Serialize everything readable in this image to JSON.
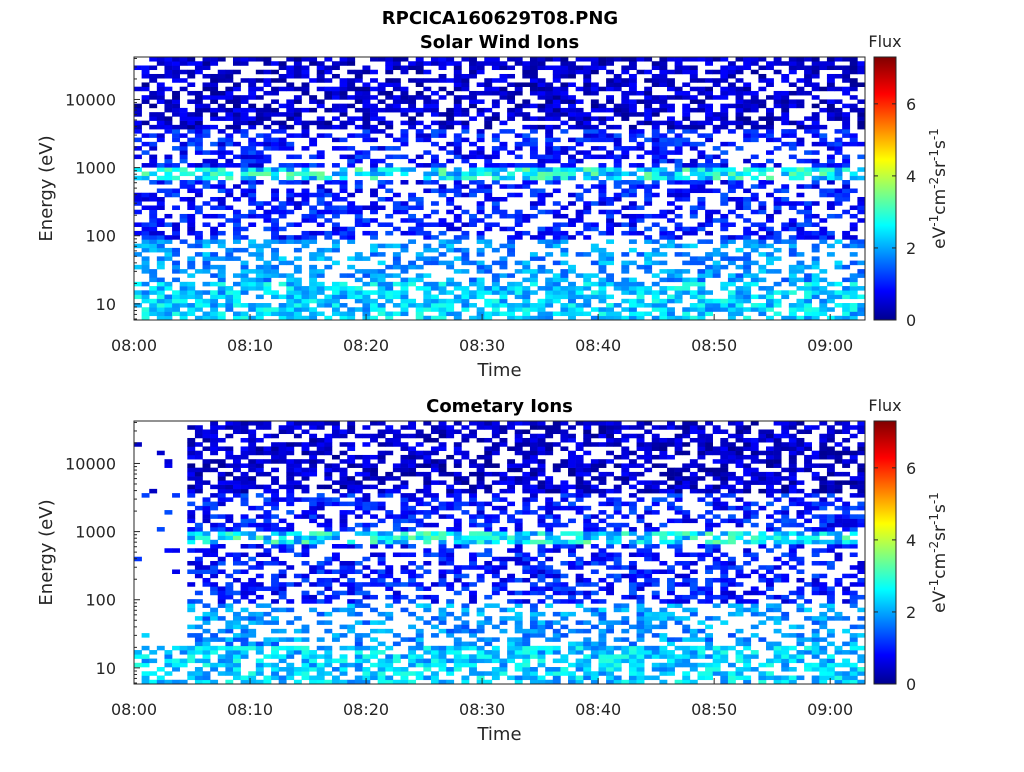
{
  "figure_title": "RPCICA160629T08.PNG",
  "chart_data": [
    {
      "type": "heatmap",
      "title": "Solar Wind Ions",
      "xlabel": "Time",
      "ylabel": "Energy (eV)",
      "x_ticks": [
        "08:00",
        "08:10",
        "08:20",
        "08:30",
        "08:40",
        "08:50",
        "09:00"
      ],
      "xlim": [
        "08:00",
        "09:03"
      ],
      "y_scale": "log",
      "y_ticks": [
        "10",
        "100",
        "1000",
        "10000"
      ],
      "ylim": [
        5.8,
        42000
      ],
      "colorbar": {
        "title": "Flux",
        "label": "eV-1cm-2sr-1s-1",
        "ticks": [
          "0",
          "2",
          "4",
          "6"
        ],
        "range": [
          0,
          7.3
        ],
        "colormap": "jet"
      },
      "gap_until_minutes": 0,
      "seed": 7
    },
    {
      "type": "heatmap",
      "title": "Cometary Ions",
      "xlabel": "Time",
      "ylabel": "Energy (eV)",
      "x_ticks": [
        "08:00",
        "08:10",
        "08:20",
        "08:30",
        "08:40",
        "08:50",
        "09:00"
      ],
      "xlim": [
        "08:00",
        "09:03"
      ],
      "y_scale": "log",
      "y_ticks": [
        "10",
        "100",
        "1000",
        "10000"
      ],
      "ylim": [
        5.8,
        42000
      ],
      "colorbar": {
        "title": "Flux",
        "label": "eV-1cm-2sr-1s-1",
        "ticks": [
          "0",
          "2",
          "4",
          "6"
        ],
        "range": [
          0,
          7.3
        ],
        "colormap": "jet"
      },
      "gap_until_minutes": 5,
      "seed": 7
    }
  ]
}
